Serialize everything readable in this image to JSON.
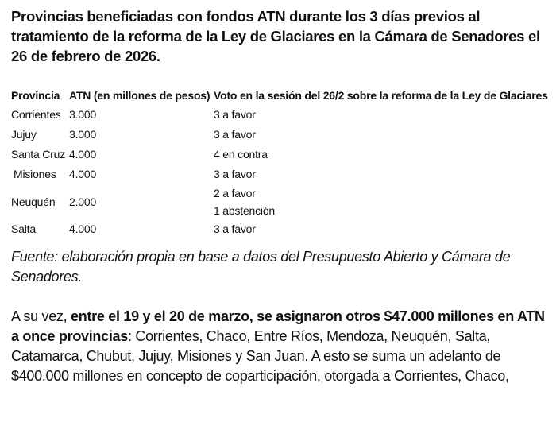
{
  "title": "Provincias beneficiadas con fondos ATN durante los 3 días previos al tratamiento de la reforma de la Ley de Glaciares en la Cámara de Senadores el 26 de febrero de 2026.",
  "table": {
    "headers": [
      "Provincia",
      "ATN (en millones de pesos)",
      "Voto en la sesión del 26/2 sobre la reforma de la Ley de Glaciares"
    ],
    "rows": [
      {
        "provincia": "Corrientes",
        "atn": "3.000",
        "voto": [
          "3 a favor"
        ]
      },
      {
        "provincia": "Jujuy",
        "atn": "3.000",
        "voto": [
          "3 a favor"
        ]
      },
      {
        "provincia": "Santa Cruz",
        "atn": "4.000",
        "voto": [
          "4 en contra"
        ]
      },
      {
        "provincia": "Misiones",
        "atn": "4.000",
        "voto": [
          "3 a favor"
        ]
      },
      {
        "provincia": "Neuquén",
        "atn": "2.000",
        "voto": [
          "2 a favor",
          "1 abstención"
        ]
      },
      {
        "provincia": "Salta",
        "atn": "4.000",
        "voto": [
          "3 a favor"
        ]
      }
    ]
  },
  "source": "Fuente: elaboración propia en base a datos del Presupuesto Abierto y Cámara de Senadores.",
  "paragraph": {
    "intro": "A su vez, ",
    "bold": "entre el 19 y el 20 de marzo, se asignaron otros $47.000 millones en ATN a once provincias",
    "rest": ": Corrientes, Chaco, Entre Ríos, Mendoza, Neuquén, Salta, Catamarca, Chubut, Jujuy, Misiones y San Juan. A esto se suma un adelanto de $400.000 millones en concepto de coparticipación, otorgada a Corrientes, Chaco,"
  }
}
